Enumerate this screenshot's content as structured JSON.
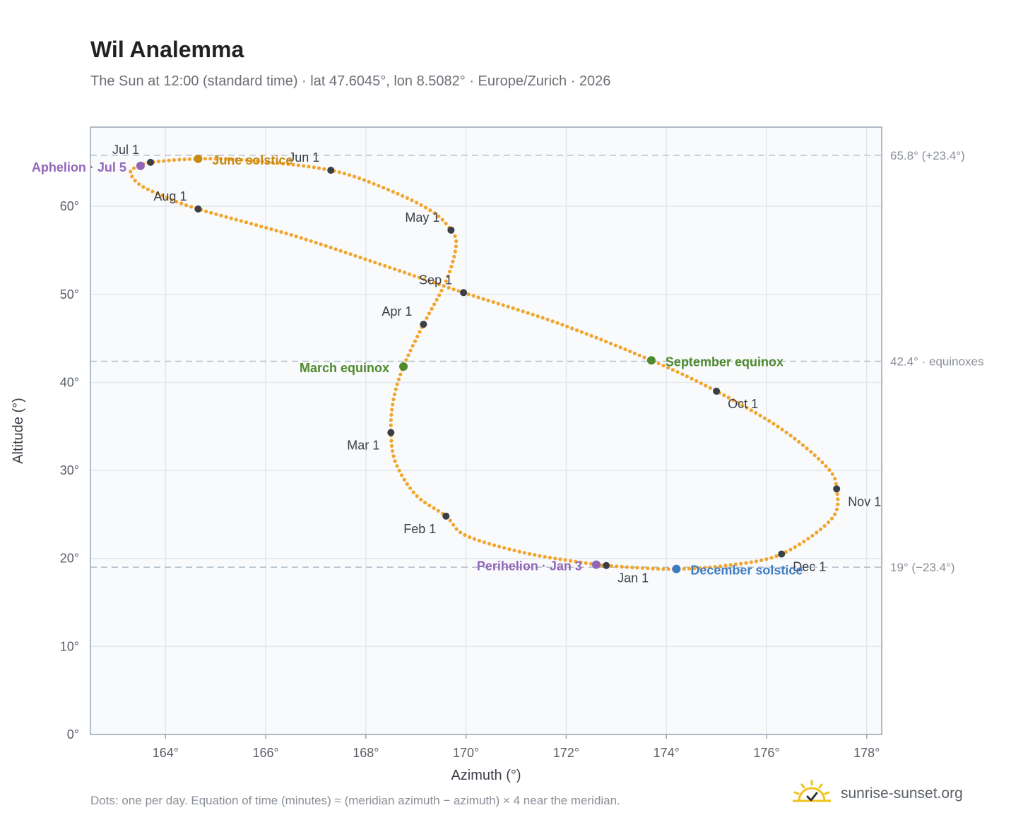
{
  "title": "Wil Analemma",
  "subtitle": "The Sun at 12:00 (standard time) · lat 47.6045°, lon 8.5082° · Europe/Zurich · 2026",
  "footnote": "Dots: one per day. Equation of time (minutes) ≈ (meridian azimuth − azimuth) × 4 near the meridian.",
  "brand": {
    "name": "sunrise-sunset.org",
    "icon": "sun-check-icon"
  },
  "colors": {
    "path": "#f2a52b",
    "month": "#3a3f47",
    "june": "#c98a12",
    "equinox": "#4f8a2e",
    "december": "#3d7cc2",
    "apsis": "#9166b8",
    "ref_line": "#b8c2cc",
    "plot_bg": "#f8fafc",
    "grid": "#e3e8ee",
    "frame": "#9aa6b2"
  },
  "chart_data": {
    "type": "scatter",
    "xlabel": "Azimuth (°)",
    "ylabel": "Altitude (°)",
    "xlim": [
      162.5,
      178.3
    ],
    "ylim": [
      0,
      69
    ],
    "xticks": [
      164,
      166,
      168,
      170,
      172,
      174,
      176,
      178
    ],
    "yticks": [
      0,
      10,
      20,
      30,
      40,
      50,
      60
    ],
    "x_tick_labels": [
      "164°",
      "166°",
      "168°",
      "170°",
      "172°",
      "174°",
      "176°",
      "178°"
    ],
    "y_tick_labels": [
      "0°",
      "10°",
      "20°",
      "30°",
      "40°",
      "50°",
      "60°"
    ],
    "grid": true,
    "reference_lines": [
      {
        "y": 65.8,
        "label": "65.8° (+23.4°)"
      },
      {
        "y": 42.4,
        "label": "42.4° · equinoxes"
      },
      {
        "y": 19.0,
        "label": "19° (−23.4°)"
      }
    ],
    "month_points": [
      {
        "label": "Jan 1",
        "x": 172.8,
        "y": 19.2
      },
      {
        "label": "Feb 1",
        "x": 169.6,
        "y": 24.8
      },
      {
        "label": "Mar 1",
        "x": 168.5,
        "y": 34.3
      },
      {
        "label": "Apr 1",
        "x": 169.15,
        "y": 46.6
      },
      {
        "label": "May 1",
        "x": 169.7,
        "y": 57.3
      },
      {
        "label": "Jun 1",
        "x": 167.3,
        "y": 64.1
      },
      {
        "label": "Jul 1",
        "x": 163.7,
        "y": 65.0
      },
      {
        "label": "Aug 1",
        "x": 164.65,
        "y": 59.7
      },
      {
        "label": "Sep 1",
        "x": 169.95,
        "y": 50.2
      },
      {
        "label": "Oct 1",
        "x": 175.0,
        "y": 39.0
      },
      {
        "label": "Nov 1",
        "x": 177.4,
        "y": 27.9
      },
      {
        "label": "Dec 1",
        "x": 176.3,
        "y": 20.5
      }
    ],
    "events": [
      {
        "label": "June solstice",
        "x": 164.65,
        "y": 65.4,
        "kind": "june"
      },
      {
        "label": "March equinox",
        "x": 168.75,
        "y": 41.8,
        "kind": "equinox"
      },
      {
        "label": "September equinox",
        "x": 173.7,
        "y": 42.5,
        "kind": "equinox"
      },
      {
        "label": "December solstice",
        "x": 174.2,
        "y": 18.8,
        "kind": "december"
      },
      {
        "label": "Aphelion · Jul 5",
        "x": 163.5,
        "y": 64.6,
        "kind": "apsis"
      },
      {
        "label": "Perihelion · Jan 3",
        "x": 172.6,
        "y": 19.3,
        "kind": "apsis"
      }
    ],
    "daily_path_keypoints": [
      [
        172.8,
        19.2
      ],
      [
        172.6,
        19.3
      ],
      [
        171.2,
        20.6
      ],
      [
        170.0,
        22.6
      ],
      [
        169.6,
        24.8
      ],
      [
        169.0,
        27.2
      ],
      [
        168.6,
        30.8
      ],
      [
        168.5,
        34.3
      ],
      [
        168.55,
        38.0
      ],
      [
        168.75,
        41.8
      ],
      [
        169.15,
        46.6
      ],
      [
        169.6,
        51.5
      ],
      [
        169.8,
        55.5
      ],
      [
        169.7,
        57.3
      ],
      [
        169.3,
        59.5
      ],
      [
        168.4,
        62.0
      ],
      [
        167.3,
        64.1
      ],
      [
        165.7,
        65.2
      ],
      [
        164.65,
        65.4
      ],
      [
        163.7,
        65.0
      ],
      [
        163.5,
        64.6
      ],
      [
        163.3,
        64.0
      ],
      [
        163.45,
        62.6
      ],
      [
        163.9,
        61.3
      ],
      [
        164.65,
        59.7
      ],
      [
        166.6,
        56.6
      ],
      [
        168.4,
        53.2
      ],
      [
        169.95,
        50.2
      ],
      [
        171.8,
        46.8
      ],
      [
        173.7,
        42.5
      ],
      [
        175.0,
        39.0
      ],
      [
        176.3,
        34.7
      ],
      [
        177.2,
        30.4
      ],
      [
        177.4,
        27.9
      ],
      [
        177.3,
        24.5
      ],
      [
        176.3,
        20.5
      ],
      [
        175.2,
        19.2
      ],
      [
        174.2,
        18.8
      ],
      [
        173.4,
        18.95
      ],
      [
        172.8,
        19.2
      ]
    ]
  }
}
